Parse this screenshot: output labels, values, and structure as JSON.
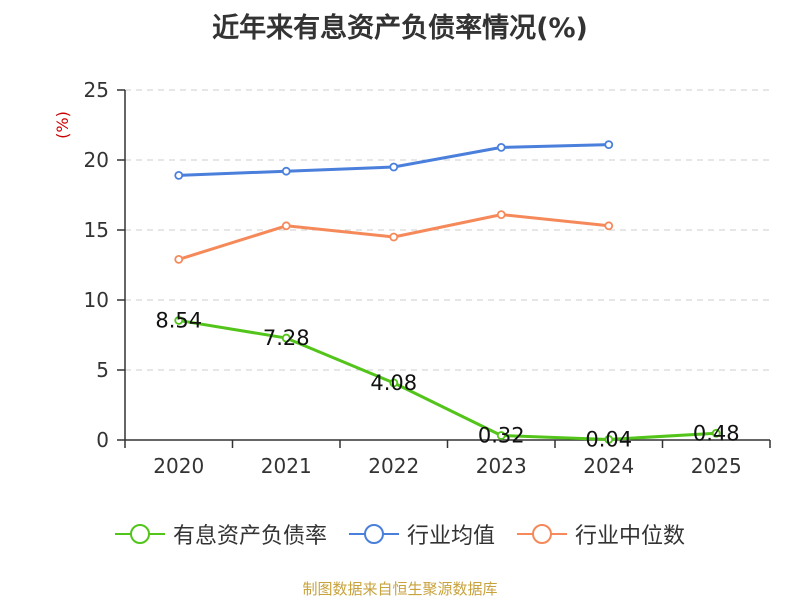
{
  "chart_data": {
    "type": "line",
    "title": "近年来有息资产负债率情况(%)",
    "ylabel": "(%)",
    "xlabel": "",
    "categories": [
      "2020",
      "2021",
      "2022",
      "2023",
      "2024",
      "2025"
    ],
    "ylim": [
      0,
      25
    ],
    "yticks": [
      0,
      5,
      10,
      15,
      20,
      25
    ],
    "grid": true,
    "legend_position": "bottom",
    "series": [
      {
        "name": "有息资产负债率",
        "color": "#52c41a",
        "values": [
          8.54,
          7.28,
          4.08,
          0.32,
          0.04,
          0.48
        ],
        "labels": [
          "8.54",
          "7.28",
          "4.08",
          "0.32",
          "0.04",
          "0.48"
        ]
      },
      {
        "name": "行业均值",
        "color": "#4a7fdc",
        "values": [
          18.9,
          19.2,
          19.5,
          20.9,
          21.1,
          null
        ]
      },
      {
        "name": "行业中位数",
        "color": "#f5895a",
        "values": [
          12.9,
          15.3,
          14.5,
          16.1,
          15.3,
          null
        ]
      }
    ]
  },
  "source": {
    "text": "制图数据来自恒生聚源数据库",
    "color": "#c8a23c"
  },
  "colors": {
    "axis": "#333333",
    "grid": "#cccccc",
    "ylabel": "#cc0000"
  }
}
